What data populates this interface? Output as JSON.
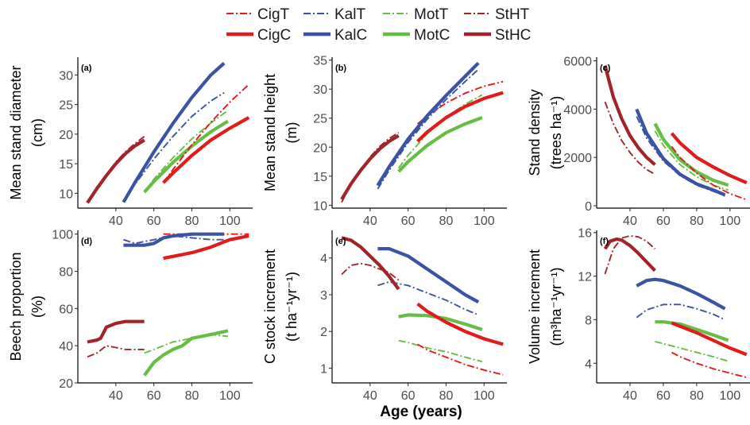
{
  "legend": {
    "entries": [
      {
        "label": "CigT",
        "color": "#e31a1c",
        "style": "dashdot"
      },
      {
        "label": "KalT",
        "color": "#3a53a4",
        "style": "dashdot"
      },
      {
        "label": "MotT",
        "color": "#66bd44",
        "style": "dashdot"
      },
      {
        "label": "StHT",
        "color": "#a0242a",
        "style": "dashdot"
      },
      {
        "label": "CigC",
        "color": "#e31a1c",
        "style": "solid"
      },
      {
        "label": "KalC",
        "color": "#3a53a4",
        "style": "solid"
      },
      {
        "label": "MotC",
        "color": "#66bd44",
        "style": "solid"
      },
      {
        "label": "StHC",
        "color": "#a0242a",
        "style": "solid"
      }
    ]
  },
  "x_axis_title": "Age (years)",
  "chart_data": [
    {
      "type": "line",
      "panel": "(a)",
      "ylabel": [
        "Mean stand diameter",
        "(cm)"
      ],
      "xlim": [
        20,
        112
      ],
      "ylim": [
        7.5,
        33
      ],
      "xticks": [
        40,
        60,
        80,
        100
      ],
      "yticks": [
        10,
        15,
        20,
        25,
        30
      ],
      "series": [
        {
          "name": "StHC",
          "x": [
            25,
            30,
            35,
            40,
            45,
            50,
            55
          ],
          "y": [
            8.4,
            10.8,
            13.0,
            15.0,
            16.7,
            18.0,
            19.0
          ]
        },
        {
          "name": "StHT",
          "x": [
            25,
            30,
            35,
            40,
            45,
            50,
            55
          ],
          "y": [
            8.4,
            10.9,
            13.2,
            15.3,
            17.0,
            18.4,
            19.6
          ]
        },
        {
          "name": "KalC",
          "x": [
            44,
            50,
            60,
            70,
            80,
            90,
            97
          ],
          "y": [
            8.5,
            11.8,
            17.0,
            21.8,
            26.2,
            30.0,
            32.0
          ]
        },
        {
          "name": "KalT",
          "x": [
            44,
            50,
            60,
            70,
            80,
            90,
            97
          ],
          "y": [
            8.5,
            11.5,
            15.8,
            19.6,
            23.0,
            25.6,
            27.0
          ]
        },
        {
          "name": "MotC",
          "x": [
            55,
            60,
            70,
            80,
            90,
            99
          ],
          "y": [
            10.2,
            12.0,
            15.2,
            18.0,
            20.4,
            22.2
          ]
        },
        {
          "name": "MotT",
          "x": [
            55,
            60,
            70,
            80,
            90,
            99
          ],
          "y": [
            10.2,
            12.4,
            16.0,
            19.2,
            21.9,
            24.0
          ]
        },
        {
          "name": "CigC",
          "x": [
            65,
            70,
            80,
            90,
            100,
            110
          ],
          "y": [
            11.8,
            13.4,
            16.4,
            19.0,
            21.0,
            22.8
          ]
        },
        {
          "name": "CigT",
          "x": [
            65,
            70,
            80,
            90,
            100,
            110
          ],
          "y": [
            11.8,
            14.0,
            18.2,
            22.0,
            25.4,
            28.4
          ]
        }
      ]
    },
    {
      "type": "line",
      "panel": "(b)",
      "ylabel": [
        "Mean stand height",
        "(m)"
      ],
      "xlim": [
        20,
        112
      ],
      "ylim": [
        9.5,
        35.5
      ],
      "xticks": [
        40,
        60,
        80,
        100
      ],
      "yticks": [
        10,
        15,
        20,
        25,
        30,
        35
      ],
      "series": [
        {
          "name": "StHC",
          "x": [
            25,
            30,
            35,
            40,
            45,
            50,
            55
          ],
          "y": [
            11.0,
            13.7,
            16.0,
            18.0,
            19.7,
            21.0,
            22.0
          ]
        },
        {
          "name": "StHT",
          "x": [
            25,
            30,
            35,
            40,
            45,
            50,
            55
          ],
          "y": [
            10.5,
            13.6,
            16.1,
            18.3,
            20.1,
            21.5,
            22.5
          ]
        },
        {
          "name": "KalC",
          "x": [
            44,
            50,
            60,
            70,
            80,
            90,
            97
          ],
          "y": [
            13.4,
            16.6,
            21.4,
            25.4,
            28.9,
            32.2,
            34.5
          ]
        },
        {
          "name": "KalT",
          "x": [
            44,
            50,
            60,
            70,
            80,
            90,
            97
          ],
          "y": [
            12.8,
            16.0,
            20.8,
            24.8,
            28.2,
            31.3,
            33.4
          ]
        },
        {
          "name": "MotC",
          "x": [
            55,
            60,
            70,
            80,
            90,
            99
          ],
          "y": [
            15.8,
            17.5,
            20.3,
            22.5,
            24.0,
            25.1
          ]
        },
        {
          "name": "MotT",
          "x": [
            55,
            60,
            70,
            80,
            90,
            99
          ],
          "y": [
            16.4,
            18.6,
            22.3,
            25.2,
            27.4,
            29.0
          ]
        },
        {
          "name": "CigC",
          "x": [
            65,
            70,
            80,
            90,
            100,
            110
          ],
          "y": [
            21.0,
            22.6,
            25.1,
            27.0,
            28.4,
            29.4
          ]
        },
        {
          "name": "CigT",
          "x": [
            65,
            70,
            80,
            90,
            100,
            110
          ],
          "y": [
            24.0,
            25.4,
            27.6,
            29.3,
            30.5,
            31.3
          ]
        }
      ]
    },
    {
      "type": "line",
      "panel": "(c)",
      "ylabel": [
        "Stand density",
        "(trees ha⁻¹)"
      ],
      "xlim": [
        20,
        112
      ],
      "ylim": [
        -100,
        6150
      ],
      "xticks": [
        40,
        60,
        80,
        100
      ],
      "yticks": [
        0,
        2000,
        4000,
        6000
      ],
      "series": [
        {
          "name": "StHC",
          "x": [
            25,
            30,
            35,
            40,
            45,
            50,
            55
          ],
          "y": [
            5800,
            4500,
            3600,
            2900,
            2400,
            2000,
            1700
          ]
        },
        {
          "name": "StHT",
          "x": [
            25,
            30,
            35,
            40,
            45,
            50,
            55
          ],
          "y": [
            4300,
            3400,
            2700,
            2200,
            1800,
            1500,
            1300
          ]
        },
        {
          "name": "KalC",
          "x": [
            44,
            50,
            60,
            70,
            80,
            90,
            97
          ],
          "y": [
            4000,
            3000,
            1950,
            1300,
            900,
            650,
            450
          ]
        },
        {
          "name": "KalT",
          "x": [
            44,
            50,
            60,
            70,
            80,
            90,
            97
          ],
          "y": [
            3700,
            2800,
            1850,
            1250,
            850,
            600,
            400
          ]
        },
        {
          "name": "MotC",
          "x": [
            55,
            60,
            70,
            80,
            90,
            99
          ],
          "y": [
            3400,
            2750,
            1900,
            1400,
            1050,
            850
          ]
        },
        {
          "name": "MotT",
          "x": [
            55,
            60,
            70,
            80,
            90,
            99
          ],
          "y": [
            3100,
            2500,
            1700,
            1200,
            850,
            650
          ]
        },
        {
          "name": "CigC",
          "x": [
            65,
            70,
            80,
            90,
            100,
            110
          ],
          "y": [
            3000,
            2600,
            2000,
            1600,
            1250,
            950
          ]
        },
        {
          "name": "CigT",
          "x": [
            65,
            70,
            80,
            90,
            100,
            110
          ],
          "y": [
            2450,
            2000,
            1350,
            850,
            500,
            250
          ]
        }
      ]
    },
    {
      "type": "line",
      "panel": "(d)",
      "ylabel": [
        "Beech proportion",
        "(%)"
      ],
      "xlim": [
        20,
        112
      ],
      "ylim": [
        20,
        102
      ],
      "xticks": [
        40,
        60,
        80,
        100
      ],
      "yticks": [
        20,
        40,
        60,
        80,
        100
      ],
      "series": [
        {
          "name": "StHC",
          "x": [
            25,
            30,
            32,
            35,
            40,
            45,
            55
          ],
          "y": [
            42,
            43,
            44,
            50,
            52,
            53,
            53
          ]
        },
        {
          "name": "StHT",
          "x": [
            25,
            30,
            35,
            40,
            45,
            55
          ],
          "y": [
            34,
            36,
            40,
            39,
            38,
            38
          ]
        },
        {
          "name": "KalC",
          "x": [
            44,
            55,
            60,
            65,
            70,
            80,
            97
          ],
          "y": [
            94,
            94,
            95,
            98,
            99,
            100,
            100
          ]
        },
        {
          "name": "KalT",
          "x": [
            44,
            50,
            60,
            70,
            80,
            90,
            97
          ],
          "y": [
            97,
            95,
            97,
            99,
            98,
            97,
            97
          ]
        },
        {
          "name": "MotC",
          "x": [
            55,
            60,
            65,
            70,
            75,
            80,
            85,
            90,
            99
          ],
          "y": [
            24,
            31,
            35,
            38,
            40,
            44,
            45,
            46,
            48
          ]
        },
        {
          "name": "MotT",
          "x": [
            55,
            60,
            70,
            80,
            90,
            99
          ],
          "y": [
            36,
            38,
            42,
            44,
            46,
            45
          ]
        },
        {
          "name": "CigC",
          "x": [
            65,
            70,
            80,
            90,
            100,
            110
          ],
          "y": [
            87,
            88,
            90,
            93,
            97,
            99
          ]
        },
        {
          "name": "CigT",
          "x": [
            65,
            70,
            80,
            90,
            100,
            110
          ],
          "y": [
            100,
            100,
            100,
            100,
            100,
            100
          ]
        }
      ]
    },
    {
      "type": "line",
      "panel": "(e)",
      "ylabel": [
        "C stock increment",
        "(t ha⁻¹yr⁻¹)"
      ],
      "xlim": [
        20,
        112
      ],
      "ylim": [
        0.6,
        4.75
      ],
      "xticks": [
        40,
        60,
        80,
        100
      ],
      "yticks": [
        1,
        2,
        3,
        4
      ],
      "series": [
        {
          "name": "StHC",
          "x": [
            25,
            30,
            35,
            40,
            45,
            50,
            55
          ],
          "y": [
            4.55,
            4.48,
            4.3,
            4.05,
            3.8,
            3.5,
            3.15
          ]
        },
        {
          "name": "StHT",
          "x": [
            25,
            30,
            35,
            40,
            45,
            50,
            55
          ],
          "y": [
            3.55,
            3.8,
            3.85,
            3.8,
            3.7,
            3.6,
            3.4
          ]
        },
        {
          "name": "KalC",
          "x": [
            44,
            50,
            60,
            70,
            80,
            90,
            97
          ],
          "y": [
            4.25,
            4.25,
            4.05,
            3.7,
            3.35,
            3.0,
            2.8
          ]
        },
        {
          "name": "KalT",
          "x": [
            44,
            50,
            60,
            70,
            80,
            90,
            97
          ],
          "y": [
            3.25,
            3.35,
            3.25,
            3.05,
            2.85,
            2.6,
            2.45
          ]
        },
        {
          "name": "MotC",
          "x": [
            55,
            60,
            70,
            80,
            90,
            99
          ],
          "y": [
            2.4,
            2.45,
            2.43,
            2.35,
            2.2,
            2.05
          ]
        },
        {
          "name": "MotT",
          "x": [
            55,
            60,
            70,
            80,
            90,
            99
          ],
          "y": [
            1.75,
            1.7,
            1.55,
            1.45,
            1.3,
            1.18
          ]
        },
        {
          "name": "CigC",
          "x": [
            65,
            70,
            80,
            90,
            100,
            110
          ],
          "y": [
            2.75,
            2.55,
            2.25,
            2.0,
            1.8,
            1.65
          ]
        },
        {
          "name": "CigT",
          "x": [
            65,
            70,
            80,
            90,
            100,
            110
          ],
          "y": [
            1.65,
            1.5,
            1.3,
            1.1,
            0.95,
            0.82
          ]
        }
      ]
    },
    {
      "type": "line",
      "panel": "(f)",
      "ylabel": [
        "Volume increment",
        "(m³ha⁻¹yr⁻¹)"
      ],
      "xlim": [
        20,
        112
      ],
      "ylim": [
        2.2,
        16.2
      ],
      "xticks": [
        40,
        60,
        80,
        100
      ],
      "yticks": [
        4,
        8,
        12,
        16
      ],
      "series": [
        {
          "name": "StHC",
          "x": [
            25,
            28,
            32,
            35,
            40,
            45,
            50,
            55
          ],
          "y": [
            14.5,
            15.2,
            15.4,
            15.3,
            14.8,
            14.1,
            13.3,
            12.5
          ]
        },
        {
          "name": "StHT",
          "x": [
            25,
            30,
            35,
            40,
            45,
            50,
            55
          ],
          "y": [
            12.2,
            14.5,
            15.5,
            15.7,
            15.6,
            15.2,
            14.5
          ]
        },
        {
          "name": "KalC",
          "x": [
            44,
            50,
            55,
            60,
            70,
            80,
            90,
            97
          ],
          "y": [
            11.1,
            11.6,
            11.7,
            11.6,
            11.1,
            10.4,
            9.6,
            9.0
          ]
        },
        {
          "name": "KalT",
          "x": [
            44,
            50,
            60,
            70,
            80,
            90,
            97
          ],
          "y": [
            8.2,
            8.9,
            9.4,
            9.4,
            9.0,
            8.5,
            8.0
          ]
        },
        {
          "name": "MotC",
          "x": [
            55,
            60,
            70,
            80,
            90,
            99
          ],
          "y": [
            7.8,
            7.8,
            7.6,
            7.1,
            6.6,
            6.1
          ]
        },
        {
          "name": "MotT",
          "x": [
            55,
            60,
            70,
            80,
            90,
            99
          ],
          "y": [
            6.0,
            5.8,
            5.4,
            5.0,
            4.6,
            4.2
          ]
        },
        {
          "name": "CigC",
          "x": [
            65,
            70,
            80,
            90,
            100,
            110
          ],
          "y": [
            7.7,
            7.4,
            6.8,
            6.1,
            5.4,
            4.8
          ]
        },
        {
          "name": "CigT",
          "x": [
            65,
            70,
            80,
            90,
            100,
            110
          ],
          "y": [
            5.0,
            4.6,
            4.0,
            3.5,
            3.1,
            2.7
          ]
        }
      ]
    }
  ]
}
